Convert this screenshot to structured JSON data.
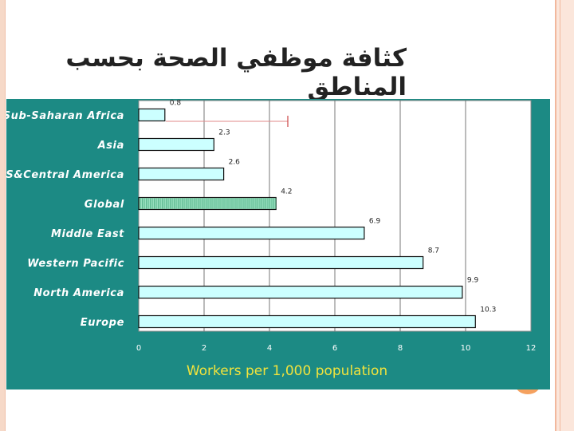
{
  "slide": {
    "title": "كثافة موظفي الصحة بحسب المناطق"
  },
  "colors": {
    "panel": "#1c8a84",
    "bar_fill": "#ccffff",
    "highlight_fill": "#99e0c0",
    "axis_title": "#f2e33c"
  },
  "chart_data": {
    "type": "bar",
    "orientation": "horizontal",
    "categories": [
      "Sub-Saharan Africa",
      "Asia",
      "S&Central America",
      "Global",
      "Middle East",
      "Western Pacific",
      "North America",
      "Europe"
    ],
    "values": [
      0.8,
      2.3,
      2.6,
      4.2,
      6.9,
      8.7,
      9.9,
      10.3
    ],
    "value_labels": [
      "0.8",
      "2.3",
      "2.6",
      "4.2",
      "6.9",
      "8.7",
      "9.9",
      "10.3"
    ],
    "highlighted_category": "Global",
    "xlabel": "Workers per 1,000 population",
    "xlim": [
      0,
      12
    ],
    "xticks": [
      "0",
      "2",
      "4",
      "6",
      "8",
      "10",
      "12"
    ],
    "grid": true
  }
}
